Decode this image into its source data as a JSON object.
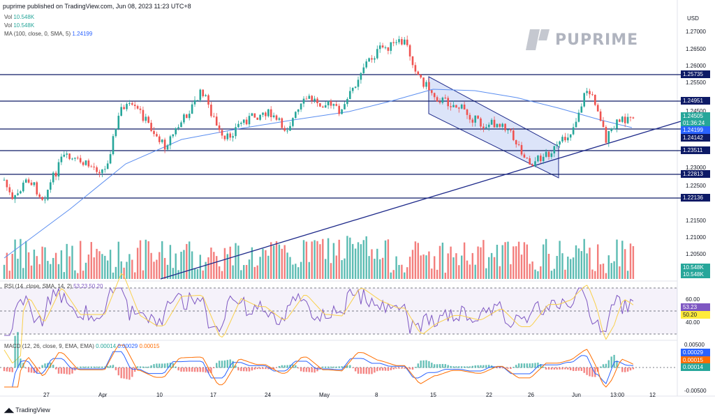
{
  "header": {
    "published": "puprime published on TradingView.com, Jun 08, 2023 11:23 UTC+8"
  },
  "legend": {
    "vol1": "Vol",
    "vol1_val": "10.548K",
    "vol2": "Vol",
    "vol2_val": "10.548K",
    "ma": "MA (100, close, 0, SMA, 5)",
    "ma_val": "1.24199"
  },
  "rsi_legend": "RSI (14, close, SMA, 14, 2)",
  "rsi_vals": "53.23  50.20",
  "macd_legend": "MACD (12, 26, close, 9, EMA, EMA)",
  "macd_vals": {
    "a": "0.00014",
    "b": "0.00029",
    "c": "0.00015"
  },
  "currency": "USD",
  "logo": "PUPRIME",
  "price_axis": [
    "1.27000",
    "1.26500",
    "1.26000",
    "1.25500",
    "1.24500",
    "1.23000",
    "1.22500",
    "1.21500",
    "1.21000",
    "1.20500"
  ],
  "price_tags": [
    {
      "label": "1.25735",
      "type": "navy"
    },
    {
      "label": "1.24951",
      "type": "navy"
    },
    {
      "label": "1.24505",
      "type": "green"
    },
    {
      "label": "01:36:24",
      "type": "green"
    },
    {
      "label": "1.24199",
      "type": "blue"
    },
    {
      "label": "1.24142",
      "type": "navy"
    },
    {
      "label": "1.23511",
      "type": "navy"
    },
    {
      "label": "1.22813",
      "type": "navy"
    },
    {
      "label": "1.22136",
      "type": "navy"
    },
    {
      "label": "10.548K",
      "type": "green"
    },
    {
      "label": "10.548K",
      "type": "green"
    }
  ],
  "rsi_axis": [
    "60.00",
    "40.00"
  ],
  "rsi_tags": [
    {
      "label": "53.23",
      "type": "blue"
    },
    {
      "label": "50.20",
      "type": "yellow"
    }
  ],
  "macd_axis": [
    "0.00500",
    "-0.00500"
  ],
  "macd_tags": [
    {
      "label": "0.00029",
      "type": "blue"
    },
    {
      "label": "0.00015",
      "type": "orange"
    },
    {
      "label": "0.00014",
      "type": "teal"
    }
  ],
  "x_axis": [
    "27",
    "Apr",
    "10",
    "17",
    "24",
    "May",
    "8",
    "15",
    "22",
    "26",
    "Jun",
    "13:00",
    "12"
  ],
  "footer": "TradingView",
  "chart_data": {
    "type": "candlestick",
    "horizontal_levels": [
      1.25735,
      1.24951,
      1.24142,
      1.23511,
      1.22813,
      1.22136
    ],
    "last_price": 1.24505,
    "ma_value": 1.24199,
    "rsi": 53.23,
    "rsi_ma": 50.2,
    "macd": 0.00029,
    "signal": 0.00015,
    "histogram": 0.00014,
    "volume": "10.548K"
  },
  "colors": {
    "up": "#26a69a",
    "down": "#ef5350",
    "level": "#0d1a66",
    "ma": "#2962ff",
    "channel_fill": "#c5d2f5"
  }
}
